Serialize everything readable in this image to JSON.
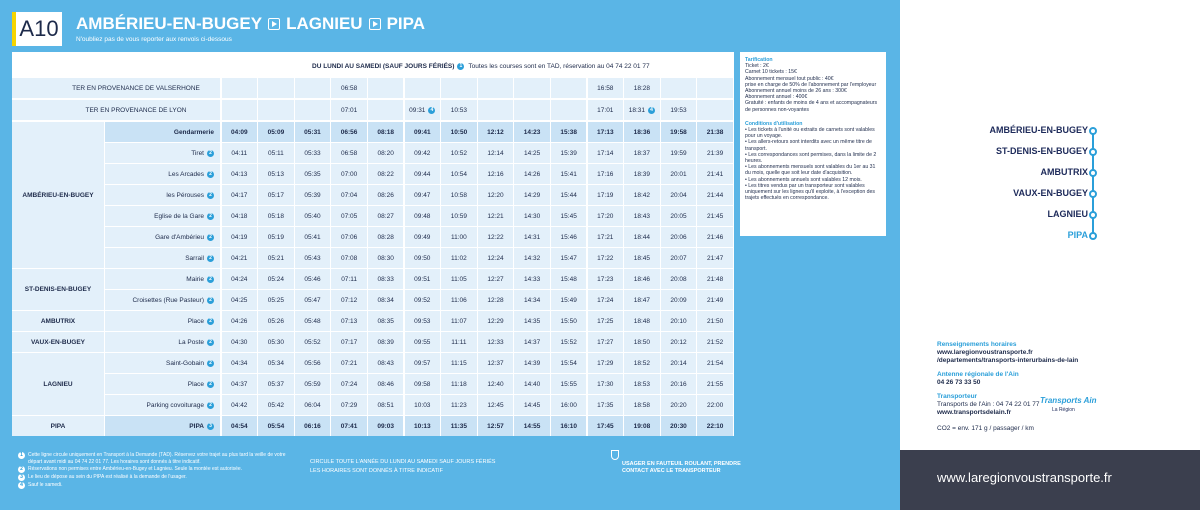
{
  "header": {
    "line": "A10",
    "stops": [
      "AMBÉRIEU-EN-BUGEY",
      "LAGNIEU",
      "PIPA"
    ],
    "subtitle": "N'oubliez pas de vous reporter aux renvois ci-dessous"
  },
  "timetable": {
    "days": "DU LUNDI AU SAMEDI (SAUF JOURS FÉRIÉS)",
    "days_note": "1",
    "days_info": "Toutes les courses sont en TAD, réservation au 04 74 22 01 77",
    "ter": [
      {
        "label": "TER EN PROVENANCE DE VALSERHONE",
        "times": [
          null,
          null,
          null,
          "06:58",
          null,
          null,
          null,
          null,
          null,
          null,
          "16:58",
          "18:28",
          null,
          null
        ]
      },
      {
        "label": "TER EN PROVENANCE DE LYON",
        "times": [
          null,
          null,
          null,
          "07:01",
          null,
          {
            "text": "09:31",
            "note": "4"
          },
          "10:53",
          null,
          null,
          null,
          "17:01",
          {
            "text": "18:31",
            "note": "4"
          },
          "19:53",
          null
        ]
      }
    ],
    "groups": [
      {
        "town": "AMBÉRIEU-EN-BUGEY",
        "stops": [
          {
            "name": "Gendarmerie",
            "bold": true,
            "times": [
              "04:09",
              "05:09",
              "05:31",
              "06:56",
              "08:18",
              "09:41",
              "10:50",
              "12:12",
              "14:23",
              "15:38",
              "17:13",
              "18:36",
              "19:58",
              "21:38"
            ]
          },
          {
            "name": "Tiret",
            "note": "2",
            "times": [
              "04:11",
              "05:11",
              "05:33",
              "06:58",
              "08:20",
              "09:42",
              "10:52",
              "12:14",
              "14:25",
              "15:39",
              "17:14",
              "18:37",
              "19:59",
              "21:39"
            ]
          },
          {
            "name": "Les Arcades",
            "note": "2",
            "times": [
              "04:13",
              "05:13",
              "05:35",
              "07:00",
              "08:22",
              "09:44",
              "10:54",
              "12:16",
              "14:26",
              "15:41",
              "17:16",
              "18:39",
              "20:01",
              "21:41"
            ]
          },
          {
            "name": "les Pérouses",
            "note": "2",
            "times": [
              "04:17",
              "05:17",
              "05:39",
              "07:04",
              "08:26",
              "09:47",
              "10:58",
              "12:20",
              "14:29",
              "15:44",
              "17:19",
              "18:42",
              "20:04",
              "21:44"
            ]
          },
          {
            "name": "Eglise de la Gare",
            "note": "2",
            "times": [
              "04:18",
              "05:18",
              "05:40",
              "07:05",
              "08:27",
              "09:48",
              "10:59",
              "12:21",
              "14:30",
              "15:45",
              "17:20",
              "18:43",
              "20:05",
              "21:45"
            ]
          },
          {
            "name": "Gare d'Ambérieu",
            "note": "2",
            "times": [
              "04:19",
              "05:19",
              "05:41",
              "07:06",
              "08:28",
              "09:49",
              "11:00",
              "12:22",
              "14:31",
              "15:46",
              "17:21",
              "18:44",
              "20:06",
              "21:46"
            ]
          },
          {
            "name": "Sarrail",
            "note": "2",
            "times": [
              "04:21",
              "05:21",
              "05:43",
              "07:08",
              "08:30",
              "09:50",
              "11:02",
              "12:24",
              "14:32",
              "15:47",
              "17:22",
              "18:45",
              "20:07",
              "21:47"
            ]
          }
        ]
      },
      {
        "town": "ST-DENIS-EN-BUGEY",
        "stops": [
          {
            "name": "Mairie",
            "note": "2",
            "times": [
              "04:24",
              "05:24",
              "05:46",
              "07:11",
              "08:33",
              "09:51",
              "11:05",
              "12:27",
              "14:33",
              "15:48",
              "17:23",
              "18:46",
              "20:08",
              "21:48"
            ]
          },
          {
            "name": "Croisettes (Rue Pasteur)",
            "note": "2",
            "times": [
              "04:25",
              "05:25",
              "05:47",
              "07:12",
              "08:34",
              "09:52",
              "11:06",
              "12:28",
              "14:34",
              "15:49",
              "17:24",
              "18:47",
              "20:09",
              "21:49"
            ]
          }
        ]
      },
      {
        "town": "AMBUTRIX",
        "stops": [
          {
            "name": "Place",
            "note": "2",
            "times": [
              "04:26",
              "05:26",
              "05:48",
              "07:13",
              "08:35",
              "09:53",
              "11:07",
              "12:29",
              "14:35",
              "15:50",
              "17:25",
              "18:48",
              "20:10",
              "21:50"
            ]
          }
        ]
      },
      {
        "town": "VAUX-EN-BUGEY",
        "stops": [
          {
            "name": "La Poste",
            "note": "2",
            "times": [
              "04:30",
              "05:30",
              "05:52",
              "07:17",
              "08:39",
              "09:55",
              "11:11",
              "12:33",
              "14:37",
              "15:52",
              "17:27",
              "18:50",
              "20:12",
              "21:52"
            ]
          }
        ]
      },
      {
        "town": "LAGNIEU",
        "stops": [
          {
            "name": "Saint-Gobain",
            "note": "2",
            "times": [
              "04:34",
              "05:34",
              "05:56",
              "07:21",
              "08:43",
              "09:57",
              "11:15",
              "12:37",
              "14:39",
              "15:54",
              "17:29",
              "18:52",
              "20:14",
              "21:54"
            ]
          },
          {
            "name": "Place",
            "note": "2",
            "times": [
              "04:37",
              "05:37",
              "05:59",
              "07:24",
              "08:46",
              "09:58",
              "11:18",
              "12:40",
              "14:40",
              "15:55",
              "17:30",
              "18:53",
              "20:16",
              "21:55"
            ]
          },
          {
            "name": "Parking covoiturage",
            "note": "2",
            "times": [
              "04:42",
              "05:42",
              "06:04",
              "07:29",
              "08:51",
              "10:03",
              "11:23",
              "12:45",
              "14:45",
              "16:00",
              "17:35",
              "18:58",
              "20:20",
              "22:00"
            ]
          }
        ]
      },
      {
        "town": "PIPA",
        "stops": [
          {
            "name": "PIPA",
            "bold": true,
            "note": "3",
            "times": [
              "04:54",
              "05:54",
              "06:16",
              "07:41",
              "09:03",
              "10:13",
              "11:35",
              "12:57",
              "14:55",
              "16:10",
              "17:45",
              "19:08",
              "20:30",
              "22:10"
            ]
          }
        ]
      }
    ]
  },
  "info": {
    "tarif_title": "Tarification",
    "tarif": [
      "Ticket : 2€",
      "Carnet 10 tickets : 15€",
      "Abonnement mensuel tout public : 40€",
      "prise en charge de 50% de l'abonnement par l'employeur",
      "Abonnement annuel moins de 26 ans : 300€",
      "Abonnement annuel : 400€",
      "Gratuité : enfants de moins de 4 ans et accompagnateurs de personnes non-voyantes"
    ],
    "conditions_title": "Conditions d'utilisation",
    "conditions": [
      "• Les tickets à l'unité ou extraits de carnets sont valables pour un voyage.",
      "• Les allers-retours sont interdits avec un même titre de transport.",
      "• Les correspondances sont permises, dans la limite de 2 heures.",
      "• Les abonnements mensuels sont valables du 1er au 31 du mois, quelle que soit leur date d'acquisition.",
      "• Les abonnements annuels sont valables 12 mois.",
      "• Les titres vendus par un transporteur sont valables uniquement sur les lignes qu'il exploite, à l'exception des trajets effectués en correspondance."
    ]
  },
  "route": [
    "AMBÉRIEU-EN-BUGEY",
    "ST-DENIS-EN-BUGEY",
    "AMBUTRIX",
    "VAUX-EN-BUGEY",
    "LAGNIEU",
    "PIPA"
  ],
  "contact": {
    "horaires_title": "Renseignements horaires",
    "horaires_url": "www.laregionvoustransporte.fr",
    "horaires_path": "/departements/transports-interurbains-de-lain",
    "antenne_title": "Antenne régionale de l'Ain",
    "antenne_phone": "04 26 73 33 50",
    "transporteur_title": "Transporteur",
    "transporteur_phone": "Transports de l'Ain : 04 74 22 01 77",
    "transporteur_url": "www.transportsdelain.fr",
    "logo": "Transports Ain",
    "logo_sub": "La Région",
    "co2": "CO2 = env. 171 g / passager / km"
  },
  "footer": "www.laregionvoustransporte.fr",
  "notes": [
    {
      "num": "1",
      "text": "Cette ligne circule uniquement en Transport à la Demande (TAD). Réservez votre trajet au plus tard la veille de votre départ avant midi au 04 74 22 01 77. Les horaires sont donnés à titre indicatif."
    },
    {
      "num": "2",
      "text": "Réservations non permises entre Ambérieu-en-Bugey et Lagnieu. Seule la montée est autorisée."
    },
    {
      "num": "3",
      "text": "Le lieu de dépose au sein du PIPA est réalisé à la demande de l'usager."
    },
    {
      "num": "4",
      "text": "Sauf le samedi."
    }
  ],
  "circulation": [
    "CIRCULE TOUTE L'ANNÉE DU LUNDI AU SAMEDI SAUF JOURS FÉRIÉS",
    "LES HORAIRES SONT DONNÉS À TITRE INDICATIF"
  ],
  "accessibility": "USAGER EN FAUTEUIL ROULANT, PRENDRE CONTACT AVEC LE TRANSPORTEUR"
}
